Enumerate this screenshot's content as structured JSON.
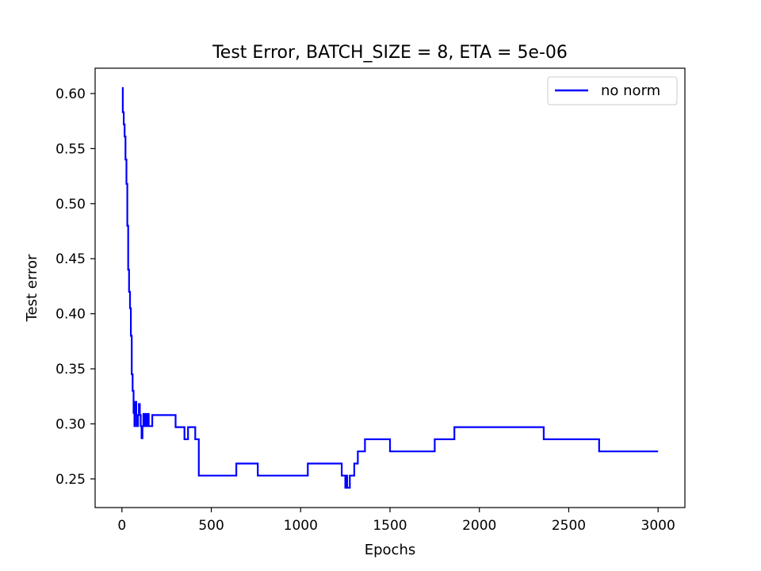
{
  "chart_data": {
    "type": "line",
    "title": "Test Error, BATCH_SIZE = 8, ETA = 5e-06",
    "xlabel": "Epochs",
    "ylabel": "Test error",
    "xlim": [
      -150,
      3150
    ],
    "ylim": [
      0.224,
      0.623
    ],
    "xticks": [
      0,
      500,
      1000,
      1500,
      2000,
      2500,
      3000
    ],
    "yticks": [
      0.25,
      0.3,
      0.35,
      0.4,
      0.45,
      0.5,
      0.55,
      0.6
    ],
    "xtick_labels": [
      "0",
      "500",
      "1000",
      "1500",
      "2000",
      "2500",
      "3000"
    ],
    "ytick_labels": [
      "0.25",
      "0.30",
      "0.35",
      "0.40",
      "0.45",
      "0.50",
      "0.55",
      "0.60"
    ],
    "grid": false,
    "legend_position": "top-right",
    "series": [
      {
        "name": "no norm",
        "color": "#0000ff",
        "step": "post",
        "x": [
          0,
          5,
          10,
          15,
          20,
          25,
          30,
          35,
          40,
          45,
          50,
          55,
          60,
          65,
          70,
          75,
          80,
          85,
          90,
          95,
          100,
          105,
          110,
          115,
          120,
          125,
          130,
          135,
          140,
          150,
          160,
          170,
          180,
          190,
          200,
          230,
          300,
          350,
          370,
          390,
          410,
          430,
          440,
          450,
          460,
          560,
          640,
          700,
          760,
          900,
          1040,
          1100,
          1200,
          1230,
          1250,
          1255,
          1260,
          1275,
          1300,
          1320,
          1340,
          1360,
          1380,
          1480,
          1500,
          1600,
          1750,
          1860,
          2000,
          2200,
          2360,
          2500,
          2670,
          2800,
          3000
        ],
        "y": [
          0.605,
          0.583,
          0.572,
          0.561,
          0.54,
          0.518,
          0.48,
          0.44,
          0.42,
          0.405,
          0.38,
          0.345,
          0.33,
          0.31,
          0.298,
          0.32,
          0.308,
          0.298,
          0.308,
          0.318,
          0.308,
          0.298,
          0.287,
          0.298,
          0.309,
          0.298,
          0.309,
          0.298,
          0.309,
          0.298,
          0.298,
          0.308,
          0.308,
          0.308,
          0.308,
          0.308,
          0.297,
          0.286,
          0.297,
          0.297,
          0.286,
          0.253,
          0.253,
          0.253,
          0.253,
          0.253,
          0.264,
          0.264,
          0.253,
          0.253,
          0.264,
          0.264,
          0.264,
          0.253,
          0.242,
          0.253,
          0.242,
          0.253,
          0.264,
          0.275,
          0.275,
          0.286,
          0.286,
          0.286,
          0.275,
          0.275,
          0.286,
          0.297,
          0.297,
          0.297,
          0.286,
          0.286,
          0.275,
          0.275,
          0.275
        ]
      }
    ]
  }
}
